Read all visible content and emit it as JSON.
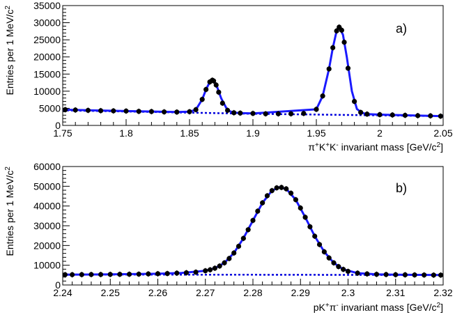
{
  "chart_data": [
    {
      "type": "scatter",
      "panel_label": "a)",
      "xlabel_parts": [
        "π",
        "+",
        "K",
        "+",
        "K",
        "-",
        " invariant mass [GeV/c",
        "2",
        "]"
      ],
      "ylabel_parts": [
        "Entries per 1 MeV/c",
        "2"
      ],
      "xlim": [
        1.75,
        2.05
      ],
      "ylim": [
        0,
        35000
      ],
      "x_ticks": [
        1.75,
        1.8,
        1.85,
        1.9,
        1.95,
        2,
        2.05
      ],
      "x_tick_labels": [
        "1.75",
        "1.8",
        "1.85",
        "1.9",
        "1.95",
        "2",
        "2.05"
      ],
      "y_ticks": [
        0,
        5000,
        10000,
        15000,
        20000,
        25000,
        30000,
        35000
      ],
      "y_tick_labels": [
        "0",
        "5000",
        "10000",
        "15000",
        "20000",
        "25000",
        "30000",
        "35000"
      ],
      "grid": false,
      "series": [
        {
          "role": "data points",
          "x": [
            1.752,
            1.76,
            1.77,
            1.78,
            1.79,
            1.8,
            1.81,
            1.82,
            1.83,
            1.84,
            1.85,
            1.855,
            1.86,
            1.863,
            1.866,
            1.868,
            1.869,
            1.871,
            1.873,
            1.876,
            1.88,
            1.885,
            1.89,
            1.9,
            1.91,
            1.92,
            1.93,
            1.94,
            1.95,
            1.955,
            1.96,
            1.963,
            1.966,
            1.968,
            1.97,
            1.972,
            1.975,
            1.98,
            1.985,
            1.99,
            2.0,
            2.01,
            2.02,
            2.03,
            2.04,
            2.048
          ],
          "y": [
            4600,
            4500,
            4400,
            4300,
            4250,
            4200,
            4100,
            4050,
            3950,
            3900,
            4000,
            4600,
            7600,
            10500,
            12700,
            13200,
            13000,
            11800,
            9700,
            6500,
            4400,
            3700,
            3600,
            3500,
            3400,
            3400,
            3400,
            3500,
            4700,
            8600,
            16500,
            22700,
            27600,
            28700,
            27800,
            24300,
            16700,
            7000,
            3800,
            3300,
            3150,
            3050,
            2950,
            2850,
            2800,
            2700
          ],
          "color": "#000000"
        },
        {
          "role": "fit total",
          "x": [
            1.75,
            1.8,
            1.84,
            1.85,
            1.855,
            1.86,
            1.863,
            1.866,
            1.869,
            1.872,
            1.875,
            1.88,
            1.885,
            1.89,
            1.9,
            1.95,
            1.955,
            1.96,
            1.963,
            1.966,
            1.968,
            1.971,
            1.974,
            1.978,
            1.982,
            1.986,
            1.99,
            2.0,
            2.05
          ],
          "y": [
            4600,
            4200,
            3900,
            4000,
            4600,
            7600,
            10500,
            12700,
            13200,
            11000,
            7900,
            4400,
            3700,
            3600,
            3500,
            4700,
            8600,
            16500,
            22700,
            27600,
            28700,
            26500,
            20000,
            10000,
            4800,
            3700,
            3300,
            3150,
            2700
          ],
          "color": "#1a1aff"
        },
        {
          "role": "fit background",
          "x": [
            1.75,
            1.9,
            2.05
          ],
          "y": [
            4400,
            3400,
            2700
          ],
          "color": "#0000dd",
          "dashed": true
        }
      ]
    },
    {
      "type": "scatter",
      "panel_label": "b)",
      "xlabel_parts": [
        "pK",
        "+",
        "π",
        "-",
        " invariant mass [GeV/c",
        "2",
        "]"
      ],
      "ylabel_parts": [
        "Entries per 1 MeV/c",
        "2"
      ],
      "xlim": [
        2.24,
        2.32
      ],
      "ylim": [
        0,
        60000
      ],
      "x_ticks": [
        2.24,
        2.25,
        2.26,
        2.27,
        2.28,
        2.29,
        2.3,
        2.31,
        2.32
      ],
      "x_tick_labels": [
        "2.24",
        "2.25",
        "2.26",
        "2.27",
        "2.28",
        "2.29",
        "2.3",
        "2.31",
        "2.32"
      ],
      "y_ticks": [
        0,
        10000,
        20000,
        30000,
        40000,
        50000,
        60000
      ],
      "y_tick_labels": [
        "0",
        "10000",
        "20000",
        "30000",
        "40000",
        "50000",
        "60000"
      ],
      "grid": false,
      "series": [
        {
          "role": "data points",
          "x": [
            2.2405,
            2.242,
            2.244,
            2.246,
            2.248,
            2.25,
            2.252,
            2.254,
            2.256,
            2.258,
            2.26,
            2.262,
            2.264,
            2.266,
            2.268,
            2.27,
            2.271,
            2.272,
            2.273,
            2.274,
            2.275,
            2.276,
            2.277,
            2.278,
            2.279,
            2.28,
            2.281,
            2.282,
            2.283,
            2.284,
            2.285,
            2.286,
            2.287,
            2.288,
            2.289,
            2.29,
            2.291,
            2.292,
            2.293,
            2.294,
            2.295,
            2.296,
            2.297,
            2.298,
            2.299,
            2.3,
            2.302,
            2.304,
            2.306,
            2.308,
            2.31,
            2.312,
            2.314,
            2.316,
            2.318,
            2.3195
          ],
          "y": [
            5200,
            5200,
            5250,
            5300,
            5300,
            5350,
            5400,
            5450,
            5500,
            5600,
            5700,
            5800,
            6000,
            6200,
            6500,
            7200,
            7700,
            8500,
            9600,
            11200,
            13400,
            16200,
            19600,
            23600,
            28000,
            32700,
            37400,
            41600,
            45200,
            47800,
            49200,
            49400,
            48700,
            46500,
            43200,
            39000,
            34300,
            29500,
            24700,
            20500,
            16800,
            13700,
            11200,
            9300,
            7900,
            6900,
            6000,
            5600,
            5400,
            5300,
            5200,
            5150,
            5100,
            5050,
            5000,
            5000
          ],
          "color": "#000000"
        },
        {
          "role": "fit total",
          "x": [
            2.24,
            2.25,
            2.26,
            2.265,
            2.27,
            2.272,
            2.274,
            2.276,
            2.278,
            2.28,
            2.282,
            2.284,
            2.2855,
            2.287,
            2.289,
            2.291,
            2.293,
            2.295,
            2.297,
            2.299,
            2.302,
            2.306,
            2.31,
            2.32
          ],
          "y": [
            5200,
            5350,
            5700,
            6100,
            7200,
            8500,
            11200,
            16200,
            23600,
            32700,
            41600,
            47800,
            49500,
            48700,
            43200,
            34300,
            24700,
            16800,
            11200,
            7900,
            6000,
            5400,
            5200,
            5000
          ],
          "color": "#1a1aff"
        },
        {
          "role": "fit background",
          "x": [
            2.24,
            2.28,
            2.32
          ],
          "y": [
            5300,
            5200,
            5050
          ],
          "color": "#0000dd",
          "dashed": true
        }
      ]
    }
  ]
}
